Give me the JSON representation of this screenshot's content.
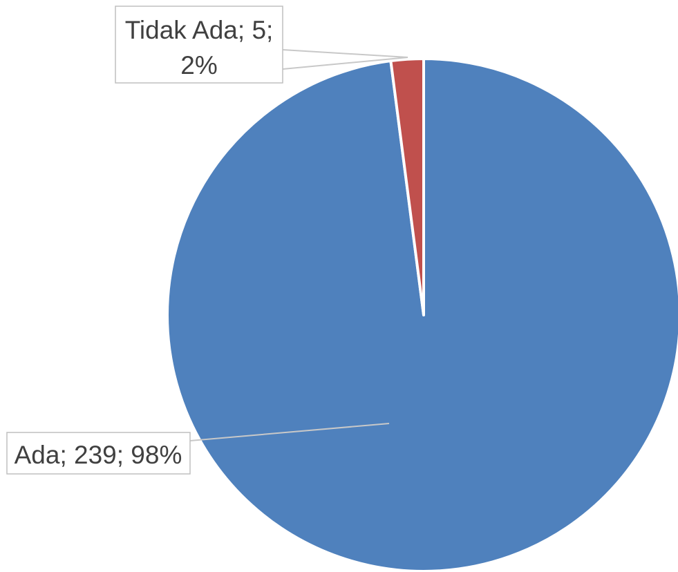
{
  "chart_data": {
    "type": "pie",
    "title": "",
    "slices": [
      {
        "name": "Ada",
        "value": 239,
        "percent": 98,
        "label": "Ada; 239; 98%",
        "color": "#4F81BD"
      },
      {
        "name": "Tidak Ada",
        "value": 5,
        "percent": 2,
        "label_lines": [
          "Tidak Ada; 5;",
          "2%"
        ],
        "color": "#C0504D"
      }
    ],
    "start": "12 o'clock",
    "direction": "clockwise",
    "legend": "none"
  }
}
